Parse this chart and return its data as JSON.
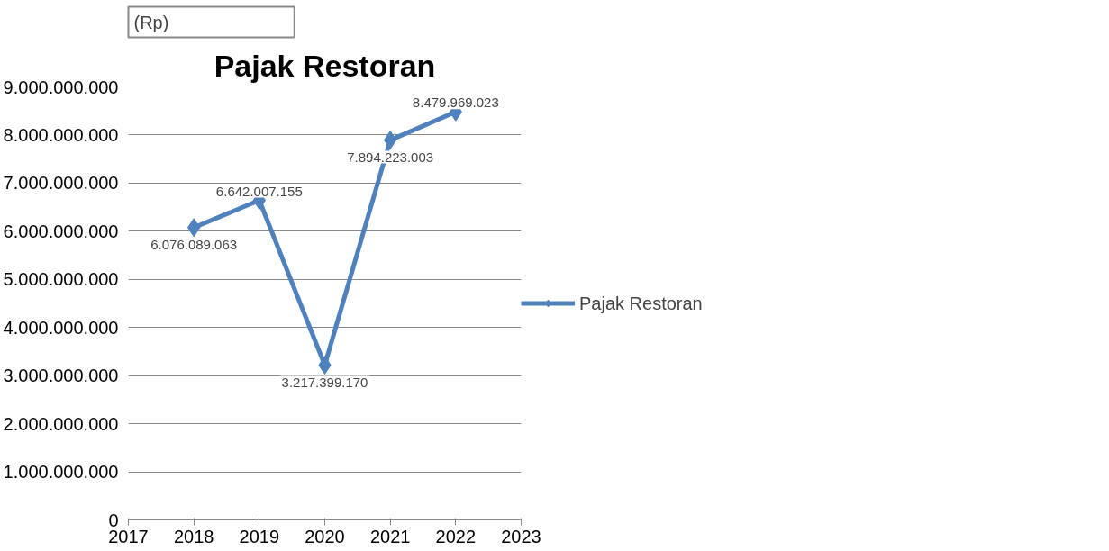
{
  "chart_data": {
    "type": "line",
    "title": "Pajak Restoran",
    "ylabel": "(Rp)",
    "x": [
      2018,
      2019,
      2020,
      2021,
      2022
    ],
    "series": [
      {
        "name": "Pajak Restoran",
        "color": "#4f81bd",
        "values": [
          6076089063,
          6642007155,
          3217399170,
          7894223003,
          8479969023
        ],
        "value_labels": [
          "6.076.089.063",
          "6.642.007.155",
          "3.217.399.170",
          "7.894.223.003",
          "8.479.969.023"
        ]
      }
    ],
    "xlim": [
      2017,
      2023
    ],
    "xticks": [
      2017,
      2018,
      2019,
      2020,
      2021,
      2022,
      2023
    ],
    "ylim": [
      0,
      9000000000
    ],
    "yticks": [
      0,
      {
        "value": 1000000000,
        "label": "1.000.000.000"
      },
      {
        "value": 2000000000,
        "label": "2.000.000.000"
      },
      {
        "value": 3000000000,
        "label": "3.000.000.000"
      },
      {
        "value": 4000000000,
        "label": "4.000.000.000"
      },
      {
        "value": 5000000000,
        "label": "5.000.000.000"
      },
      {
        "value": 6000000000,
        "label": "6.000.000.000"
      },
      {
        "value": 7000000000,
        "label": "7.000.000.000"
      },
      {
        "value": 8000000000,
        "label": "8.000.000.000"
      },
      {
        "value": 9000000000,
        "label": "9.000.000.000"
      }
    ],
    "grid": "y",
    "legend": "right",
    "marker": "diamond",
    "line_style": "solid"
  }
}
